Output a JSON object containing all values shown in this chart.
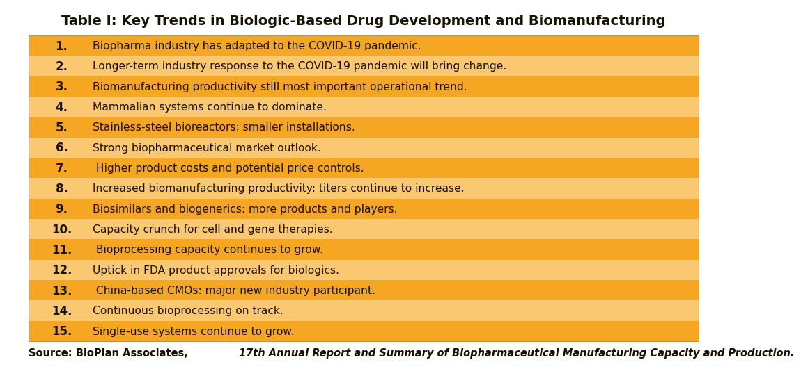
{
  "title": "Table I: Key Trends in Biologic-Based Drug Development and Biomanufacturing",
  "rows": [
    {
      "num": "1.",
      "text": "Biopharma industry has adapted to the COVID-19 pandemic.",
      "dark": true
    },
    {
      "num": "2.",
      "text": "Longer-term industry response to the COVID-19 pandemic will bring change.",
      "dark": false
    },
    {
      "num": "3.",
      "text": "Biomanufacturing productivity still most important operational trend.",
      "dark": true
    },
    {
      "num": "4.",
      "text": "Mammalian systems continue to dominate.",
      "dark": false
    },
    {
      "num": "5.",
      "text": "Stainless-steel bioreactors: smaller installations.",
      "dark": true
    },
    {
      "num": "6.",
      "text": "Strong biopharmaceutical market outlook.",
      "dark": false
    },
    {
      "num": "7.",
      "text": " Higher product costs and potential price controls.",
      "dark": true
    },
    {
      "num": "8.",
      "text": "Increased biomanufacturing productivity: titers continue to increase.",
      "dark": false
    },
    {
      "num": "9.",
      "text": "Biosimilars and biogenerics: more products and players.",
      "dark": true
    },
    {
      "num": "10.",
      "text": "Capacity crunch for cell and gene therapies.",
      "dark": false
    },
    {
      "num": "11.",
      "text": " Bioprocessing capacity continues to grow.",
      "dark": true
    },
    {
      "num": "12.",
      "text": "Uptick in FDA product approvals for biologics.",
      "dark": false
    },
    {
      "num": "13.",
      "text": " China-based CMOs: major new industry participant.",
      "dark": true
    },
    {
      "num": "14.",
      "text": "Continuous bioprocessing on track.",
      "dark": false
    },
    {
      "num": "15.",
      "text": "Single-use systems continue to grow.",
      "dark": true
    }
  ],
  "source_plain": "Source: BioPlan Associates, ",
  "source_italic": "17th Annual Report and Summary of Biopharmaceutical Manufacturing Capacity and Production.",
  "color_dark": "#F5A623",
  "color_light": "#FAC870",
  "color_text": "#1a1200",
  "title_fontsize": 14,
  "row_fontsize": 11.2,
  "source_fontsize": 10.5,
  "num_fontsize": 12
}
